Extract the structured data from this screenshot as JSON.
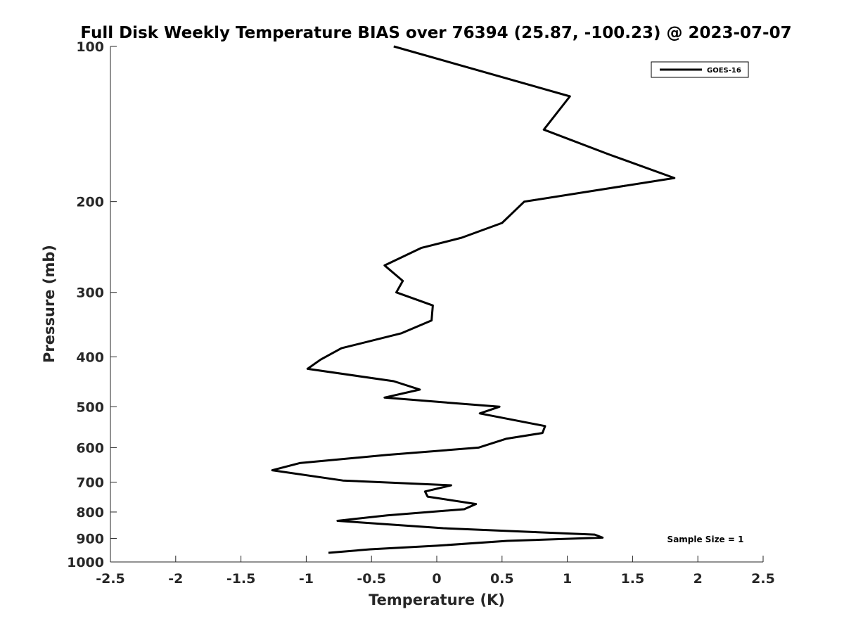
{
  "chart_data": {
    "type": "line",
    "title": "Full Disk Weekly Temperature BIAS over 76394 (25.87, -100.23) @ 2023-07-07",
    "xlabel": "Temperature (K)",
    "ylabel": "Pressure (mb)",
    "xlim": [
      -2.5,
      2.5
    ],
    "ylim": [
      1000,
      100
    ],
    "y_scale": "log",
    "x_ticks": [
      "-2.5",
      "-2",
      "-1.5",
      "-1",
      "-0.5",
      "0",
      "0.5",
      "1",
      "1.5",
      "2",
      "2.5"
    ],
    "y_ticks": [
      "100",
      "200",
      "300",
      "400",
      "500",
      "600",
      "700",
      "800",
      "900",
      "1000"
    ],
    "grid": false,
    "legend_position": "top-right",
    "annotation": "Sample Size = 1",
    "series": [
      {
        "name": "GOES-16",
        "color": "#000000",
        "points": [
          {
            "x": -0.33,
            "p": 100
          },
          {
            "x": 1.02,
            "p": 125
          },
          {
            "x": 0.82,
            "p": 145
          },
          {
            "x": 1.32,
            "p": 162
          },
          {
            "x": 1.82,
            "p": 180
          },
          {
            "x": 0.67,
            "p": 200
          },
          {
            "x": 0.5,
            "p": 220
          },
          {
            "x": 0.19,
            "p": 235
          },
          {
            "x": -0.12,
            "p": 246
          },
          {
            "x": -0.4,
            "p": 266
          },
          {
            "x": -0.26,
            "p": 285
          },
          {
            "x": -0.31,
            "p": 300
          },
          {
            "x": -0.03,
            "p": 318
          },
          {
            "x": -0.04,
            "p": 340
          },
          {
            "x": -0.27,
            "p": 360
          },
          {
            "x": -0.73,
            "p": 385
          },
          {
            "x": -0.89,
            "p": 405
          },
          {
            "x": -0.99,
            "p": 422
          },
          {
            "x": -0.33,
            "p": 446
          },
          {
            "x": -0.13,
            "p": 463
          },
          {
            "x": -0.4,
            "p": 480
          },
          {
            "x": 0.48,
            "p": 500
          },
          {
            "x": 0.33,
            "p": 515
          },
          {
            "x": 0.83,
            "p": 545
          },
          {
            "x": 0.81,
            "p": 562
          },
          {
            "x": 0.53,
            "p": 577
          },
          {
            "x": 0.32,
            "p": 600
          },
          {
            "x": -0.38,
            "p": 620
          },
          {
            "x": -1.05,
            "p": 643
          },
          {
            "x": -1.26,
            "p": 664
          },
          {
            "x": -0.72,
            "p": 695
          },
          {
            "x": 0.11,
            "p": 710
          },
          {
            "x": -0.09,
            "p": 730
          },
          {
            "x": -0.07,
            "p": 747
          },
          {
            "x": 0.3,
            "p": 772
          },
          {
            "x": 0.21,
            "p": 790
          },
          {
            "x": -0.38,
            "p": 812
          },
          {
            "x": -0.76,
            "p": 832
          },
          {
            "x": 0.05,
            "p": 860
          },
          {
            "x": 1.21,
            "p": 885
          },
          {
            "x": 1.27,
            "p": 897
          },
          {
            "x": 0.54,
            "p": 910
          },
          {
            "x": 0.0,
            "p": 930
          },
          {
            "x": -0.51,
            "p": 945
          },
          {
            "x": -0.83,
            "p": 960
          }
        ]
      }
    ]
  }
}
